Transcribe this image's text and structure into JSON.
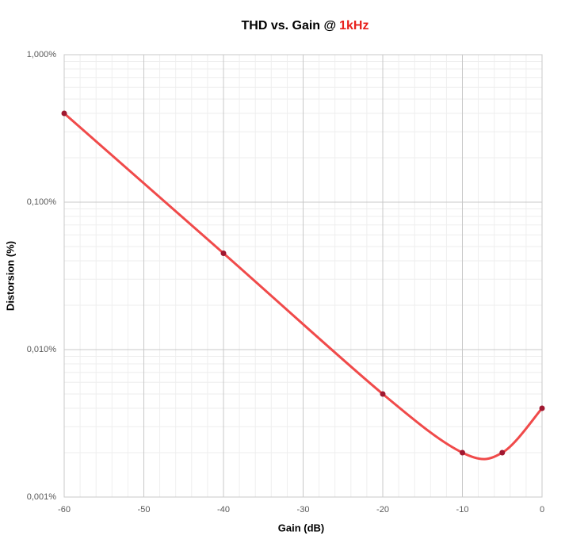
{
  "chart_data": {
    "type": "line",
    "title": "THD vs. Gain @",
    "title_highlight": "1kHz",
    "x_label": "Gain (dB)",
    "y_label": "Distorsion (%)",
    "x": [
      -60,
      -40,
      -20,
      -10,
      -5,
      0
    ],
    "series": [
      {
        "name": "THD",
        "color": "#f04a4a",
        "marker_color": "#a01830",
        "values": [
          0.4,
          0.045,
          0.005,
          0.002,
          0.002,
          0.004
        ]
      }
    ],
    "xlim": [
      -60,
      0
    ],
    "xticks": [
      -60,
      -50,
      -40,
      -30,
      -20,
      -10,
      0
    ],
    "ylim": [
      0.001,
      1
    ],
    "y_log": true,
    "yticks": [
      {
        "value": 0.001,
        "label": "0,001%"
      },
      {
        "value": 0.01,
        "label": "0,010%"
      },
      {
        "value": 0.1,
        "label": "0,100%"
      },
      {
        "value": 1,
        "label": "1,000%"
      }
    ],
    "grid": true,
    "minor_grid": true,
    "highlight_color": "#e8201c"
  }
}
